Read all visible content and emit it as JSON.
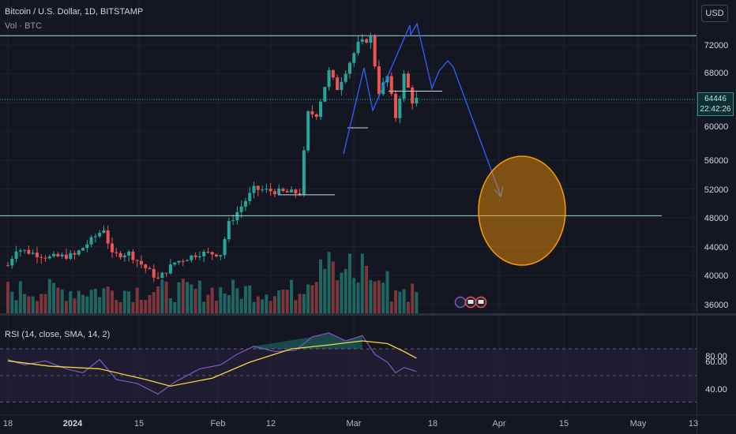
{
  "header": {
    "title": "Bitcoin / U.S. Dollar, 1D, BITSTAMP",
    "volume_label": "Vol · BTC",
    "currency_button": "USD"
  },
  "rsi": {
    "label": "RSI (14, close, SMA, 14, 2)",
    "ticks": [
      "80.00",
      "60.00",
      "40.00"
    ]
  },
  "price_axis": {
    "ticks": [
      "72000",
      "68000",
      "64000",
      "60000",
      "56000",
      "52000",
      "48000",
      "44000",
      "40000",
      "36000"
    ],
    "current_price": "64446",
    "countdown": "22:42:26"
  },
  "time_axis": {
    "labels": [
      "18",
      "2024",
      "15",
      "Feb",
      "12",
      "Mar",
      "18",
      "Apr",
      "15",
      "May",
      "13"
    ],
    "bold_label": "2024"
  },
  "colors": {
    "up": "#26a69a",
    "down": "#ef5350",
    "drawing": "#2962ff",
    "level_line": "#a0d8d0",
    "ellipse": "#ff9800",
    "rsi_line": "#7e57c2",
    "rsi_sma": "#f5d63c"
  },
  "chart_data": {
    "type": "candlestick",
    "symbol": "Bitcoin / U.S. Dollar",
    "interval": "1D",
    "exchange": "BITSTAMP",
    "y_range": [
      36000,
      75000
    ],
    "horizontal_levels": [
      73300,
      48300
    ],
    "last_close": 64446,
    "waypoints": [
      [
        "2023-12-18",
        41400
      ],
      [
        "2023-12-20",
        43700
      ],
      [
        "2023-12-28",
        42500
      ],
      [
        "2024-01-03",
        42800
      ],
      [
        "2024-01-10",
        46500
      ],
      [
        "2024-01-12",
        42800
      ],
      [
        "2024-01-16",
        43100
      ],
      [
        "2024-01-23",
        39500
      ],
      [
        "2024-01-27",
        41800
      ],
      [
        "2024-02-02",
        43100
      ],
      [
        "2024-02-07",
        43000
      ],
      [
        "2024-02-09",
        47200
      ],
      [
        "2024-02-15",
        52000
      ],
      [
        "2024-02-23",
        51500
      ],
      [
        "2024-02-26",
        51500
      ],
      [
        "2024-02-28",
        62500
      ],
      [
        "2024-03-01",
        62400
      ],
      [
        "2024-03-04",
        68300
      ],
      [
        "2024-03-06",
        66000
      ],
      [
        "2024-03-11",
        72100
      ],
      [
        "2024-03-14",
        73000
      ],
      [
        "2024-03-16",
        65500
      ],
      [
        "2024-03-18",
        67600
      ],
      [
        "2024-03-20",
        62000
      ],
      [
        "2024-03-22",
        67800
      ],
      [
        "2024-03-24",
        64200
      ],
      [
        "2024-03-25",
        64446
      ]
    ],
    "rsi_series": [
      [
        "2023-12-18",
        62
      ],
      [
        "2023-12-22",
        58
      ],
      [
        "2023-12-27",
        61
      ],
      [
        "2024-01-01",
        55
      ],
      [
        "2024-01-05",
        52
      ],
      [
        "2024-01-09",
        62
      ],
      [
        "2024-01-13",
        47
      ],
      [
        "2024-01-18",
        44
      ],
      [
        "2024-01-23",
        36
      ],
      [
        "2024-01-27",
        45
      ],
      [
        "2024-02-02",
        55
      ],
      [
        "2024-02-07",
        58
      ],
      [
        "2024-02-11",
        66
      ],
      [
        "2024-02-15",
        72
      ],
      [
        "2024-02-20",
        68
      ],
      [
        "2024-02-25",
        69
      ],
      [
        "2024-02-29",
        79
      ],
      [
        "2024-03-04",
        82
      ],
      [
        "2024-03-08",
        76
      ],
      [
        "2024-03-12",
        80
      ],
      [
        "2024-03-15",
        66
      ],
      [
        "2024-03-18",
        60
      ],
      [
        "2024-03-20",
        52
      ],
      [
        "2024-03-22",
        56
      ],
      [
        "2024-03-25",
        53
      ]
    ],
    "rsi_sma_series": [
      [
        "2023-12-18",
        61
      ],
      [
        "2023-12-28",
        57
      ],
      [
        "2024-01-09",
        55
      ],
      [
        "2024-01-20",
        47
      ],
      [
        "2024-01-26",
        42
      ],
      [
        "2024-02-05",
        48
      ],
      [
        "2024-02-14",
        60
      ],
      [
        "2024-02-24",
        70
      ],
      [
        "2024-03-04",
        73
      ],
      [
        "2024-03-12",
        76
      ],
      [
        "2024-03-18",
        74
      ],
      [
        "2024-03-22",
        68
      ],
      [
        "2024-03-25",
        63
      ]
    ],
    "rsi_bands": [
      70,
      50,
      30
    ],
    "rsi_range": [
      25,
      95
    ]
  }
}
